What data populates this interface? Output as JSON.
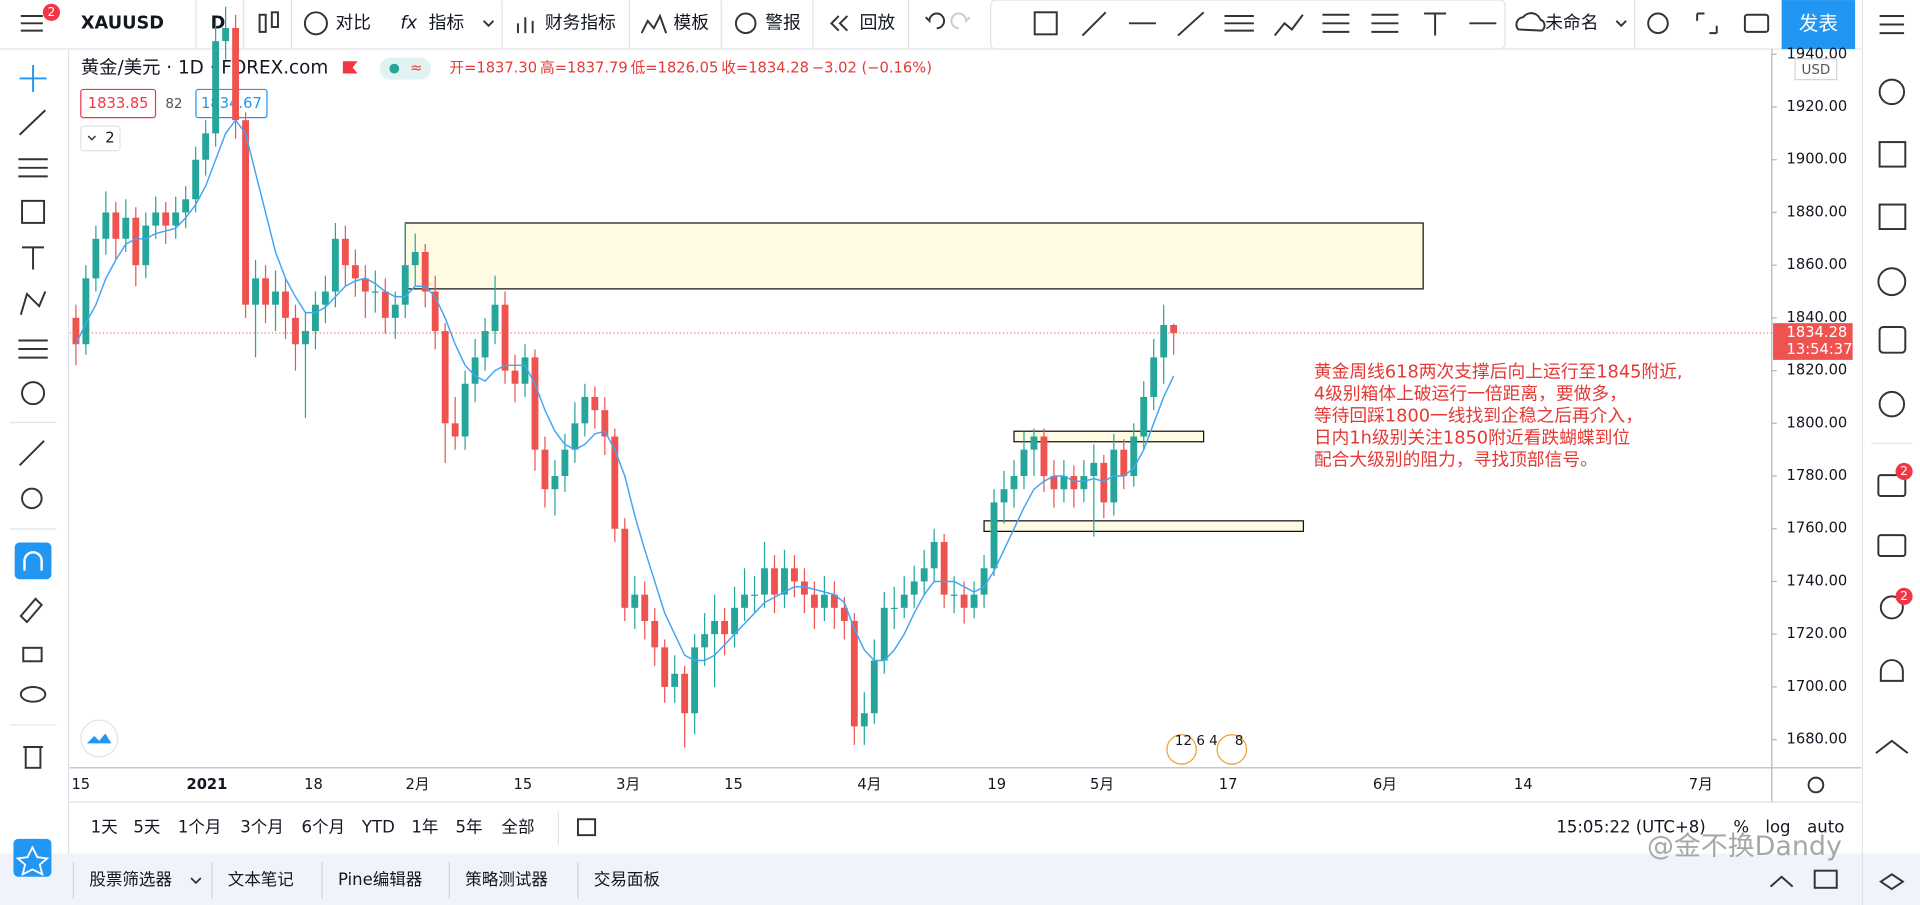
{
  "symbol": "XAUUSD",
  "interval": "D",
  "toolbar": [
    "对比",
    "指标",
    "财务指标",
    "模板",
    "警报",
    "回放"
  ],
  "layout_name": "未命名",
  "publish": "发表",
  "legend": {
    "title": "黄金/美元 · 1D · FOREX.com",
    "ohlc": [
      "开=1837.30",
      "高=1837.79",
      "低=1826.05",
      "收=1834.28",
      "−3.02 (−0.16%)"
    ],
    "bid": "1833.85",
    "spread": "82",
    "ask": "1834.67",
    "indicators": "2"
  },
  "price_axis": {
    "currency": "USD",
    "ylim": [
      1669.3,
      1942
    ],
    "ticks": [
      {
        "value": 1680,
        "label": "1680.00"
      },
      {
        "value": 1700,
        "label": "1700.00"
      },
      {
        "value": 1720,
        "label": "1720.00"
      },
      {
        "value": 1740,
        "label": "1740.00"
      },
      {
        "value": 1760,
        "label": "1760.00"
      },
      {
        "value": 1780,
        "label": "1780.00"
      },
      {
        "value": 1800,
        "label": "1800.00"
      },
      {
        "value": 1820,
        "label": "1820.00"
      },
      {
        "value": 1840,
        "label": "1840.00"
      },
      {
        "value": 1860,
        "label": "1860.00"
      },
      {
        "value": 1880,
        "label": "1880.00"
      },
      {
        "value": 1900,
        "label": "1900.00"
      },
      {
        "value": 1920,
        "label": "1920.00"
      },
      {
        "value": 1940,
        "label": "1940.00"
      }
    ]
  },
  "price_tag": {
    "price": "1834.28",
    "countdown": "13:54:37"
  },
  "time_axis": [
    "15",
    "2021",
    "18",
    "2月",
    "15",
    "3月",
    "15",
    "4月",
    "19",
    "5月",
    "17",
    "6月",
    "14",
    "7月"
  ],
  "candles": [
    [
      1840,
      1845,
      1822,
      1830
    ],
    [
      1830,
      1860,
      1826,
      1855
    ],
    [
      1855,
      1875,
      1850,
      1870
    ],
    [
      1870,
      1888,
      1864,
      1880
    ],
    [
      1880,
      1884,
      1862,
      1870
    ],
    [
      1870,
      1885,
      1865,
      1878
    ],
    [
      1878,
      1882,
      1852,
      1860
    ],
    [
      1860,
      1880,
      1855,
      1875
    ],
    [
      1875,
      1886,
      1870,
      1880
    ],
    [
      1880,
      1884,
      1868,
      1875
    ],
    [
      1875,
      1886,
      1870,
      1880
    ],
    [
      1880,
      1890,
      1874,
      1885
    ],
    [
      1885,
      1905,
      1880,
      1900
    ],
    [
      1900,
      1915,
      1894,
      1910
    ],
    [
      1910,
      1952,
      1905,
      1945
    ],
    [
      1945,
      1958,
      1938,
      1950
    ],
    [
      1950,
      1955,
      1908,
      1915
    ],
    [
      1915,
      1918,
      1840,
      1845
    ],
    [
      1845,
      1862,
      1825,
      1855
    ],
    [
      1855,
      1860,
      1838,
      1845
    ],
    [
      1845,
      1858,
      1835,
      1850
    ],
    [
      1850,
      1855,
      1832,
      1840
    ],
    [
      1840,
      1845,
      1820,
      1830
    ],
    [
      1830,
      1842,
      1802,
      1835
    ],
    [
      1835,
      1850,
      1828,
      1845
    ],
    [
      1845,
      1856,
      1838,
      1850
    ],
    [
      1850,
      1876,
      1844,
      1870
    ],
    [
      1870,
      1875,
      1852,
      1860
    ],
    [
      1860,
      1866,
      1848,
      1855
    ],
    [
      1855,
      1860,
      1840,
      1850
    ],
    [
      1850,
      1858,
      1842,
      1850
    ],
    [
      1850,
      1855,
      1834,
      1840
    ],
    [
      1840,
      1850,
      1832,
      1845
    ],
    [
      1845,
      1876,
      1840,
      1860
    ],
    [
      1860,
      1872,
      1852,
      1865
    ],
    [
      1865,
      1868,
      1844,
      1850
    ],
    [
      1850,
      1856,
      1828,
      1835
    ],
    [
      1835,
      1838,
      1785,
      1800
    ],
    [
      1800,
      1810,
      1790,
      1795
    ],
    [
      1795,
      1820,
      1790,
      1815
    ],
    [
      1815,
      1832,
      1808,
      1825
    ],
    [
      1825,
      1840,
      1820,
      1835
    ],
    [
      1835,
      1856,
      1830,
      1845
    ],
    [
      1845,
      1850,
      1815,
      1820
    ],
    [
      1820,
      1826,
      1808,
      1815
    ],
    [
      1815,
      1830,
      1810,
      1825
    ],
    [
      1825,
      1828,
      1782,
      1790
    ],
    [
      1790,
      1795,
      1768,
      1775
    ],
    [
      1775,
      1786,
      1765,
      1780
    ],
    [
      1780,
      1796,
      1774,
      1790
    ],
    [
      1790,
      1808,
      1785,
      1800
    ],
    [
      1800,
      1815,
      1795,
      1810
    ],
    [
      1810,
      1814,
      1798,
      1805
    ],
    [
      1805,
      1810,
      1788,
      1795
    ],
    [
      1795,
      1798,
      1755,
      1760
    ],
    [
      1760,
      1764,
      1725,
      1730
    ],
    [
      1730,
      1742,
      1722,
      1735
    ],
    [
      1735,
      1740,
      1718,
      1725
    ],
    [
      1725,
      1730,
      1708,
      1715
    ],
    [
      1715,
      1718,
      1694,
      1700
    ],
    [
      1700,
      1712,
      1694,
      1705
    ],
    [
      1705,
      1708,
      1677,
      1690
    ],
    [
      1690,
      1720,
      1682,
      1715
    ],
    [
      1715,
      1728,
      1708,
      1720
    ],
    [
      1720,
      1735,
      1700,
      1725
    ],
    [
      1725,
      1730,
      1712,
      1720
    ],
    [
      1720,
      1738,
      1715,
      1730
    ],
    [
      1730,
      1745,
      1725,
      1735
    ],
    [
      1735,
      1742,
      1728,
      1735
    ],
    [
      1735,
      1755,
      1730,
      1745
    ],
    [
      1745,
      1750,
      1728,
      1735
    ],
    [
      1735,
      1752,
      1730,
      1745
    ],
    [
      1745,
      1750,
      1734,
      1740
    ],
    [
      1740,
      1745,
      1728,
      1735
    ],
    [
      1735,
      1740,
      1722,
      1730
    ],
    [
      1730,
      1742,
      1725,
      1735
    ],
    [
      1735,
      1740,
      1722,
      1730
    ],
    [
      1730,
      1734,
      1718,
      1725
    ],
    [
      1725,
      1728,
      1678,
      1685
    ],
    [
      1685,
      1698,
      1678,
      1690
    ],
    [
      1690,
      1718,
      1686,
      1710
    ],
    [
      1710,
      1736,
      1705,
      1730
    ],
    [
      1730,
      1738,
      1722,
      1730
    ],
    [
      1730,
      1742,
      1726,
      1735
    ],
    [
      1735,
      1746,
      1730,
      1740
    ],
    [
      1740,
      1752,
      1735,
      1745
    ],
    [
      1745,
      1760,
      1740,
      1755
    ],
    [
      1755,
      1758,
      1730,
      1735
    ],
    [
      1735,
      1742,
      1728,
      1735
    ],
    [
      1735,
      1740,
      1724,
      1730
    ],
    [
      1730,
      1740,
      1726,
      1735
    ],
    [
      1735,
      1750,
      1730,
      1745
    ],
    [
      1745,
      1775,
      1742,
      1770
    ],
    [
      1770,
      1782,
      1762,
      1775
    ],
    [
      1775,
      1786,
      1768,
      1780
    ],
    [
      1780,
      1797,
      1775,
      1790
    ],
    [
      1790,
      1798,
      1780,
      1795
    ],
    [
      1795,
      1798,
      1774,
      1780
    ],
    [
      1780,
      1786,
      1768,
      1775
    ],
    [
      1775,
      1786,
      1770,
      1780
    ],
    [
      1780,
      1784,
      1768,
      1775
    ],
    [
      1775,
      1786,
      1770,
      1780
    ],
    [
      1780,
      1792,
      1757,
      1785
    ],
    [
      1785,
      1788,
      1764,
      1770
    ],
    [
      1770,
      1796,
      1765,
      1790
    ],
    [
      1790,
      1794,
      1775,
      1780
    ],
    [
      1780,
      1800,
      1776,
      1795
    ],
    [
      1795,
      1816,
      1790,
      1810
    ],
    [
      1810,
      1832,
      1805,
      1825
    ],
    [
      1825,
      1845,
      1815,
      1837.3
    ],
    [
      1837.3,
      1837.79,
      1826.05,
      1834.28
    ]
  ],
  "ma": [
    1830,
    1838,
    1845,
    1855,
    1862,
    1868,
    1870,
    1870,
    1872,
    1873,
    1874,
    1878,
    1883,
    1890,
    1900,
    1910,
    1915,
    1910,
    1895,
    1880,
    1865,
    1855,
    1848,
    1842,
    1842,
    1844,
    1848,
    1852,
    1854,
    1855,
    1853,
    1850,
    1848,
    1848,
    1852,
    1852,
    1848,
    1840,
    1830,
    1822,
    1818,
    1816,
    1820,
    1822,
    1822,
    1822,
    1815,
    1805,
    1797,
    1792,
    1790,
    1792,
    1796,
    1797,
    1790,
    1780,
    1765,
    1752,
    1740,
    1728,
    1720,
    1712,
    1710,
    1710,
    1712,
    1716,
    1720,
    1724,
    1728,
    1732,
    1734,
    1736,
    1738,
    1738,
    1737,
    1736,
    1735,
    1732,
    1722,
    1714,
    1710,
    1710,
    1714,
    1720,
    1728,
    1735,
    1740,
    1740,
    1740,
    1738,
    1736,
    1738,
    1744,
    1752,
    1760,
    1768,
    1775,
    1778,
    1780,
    1780,
    1778,
    1778,
    1779,
    1778,
    1780,
    1780,
    1783,
    1790,
    1800,
    1810,
    1818
  ],
  "zones": [
    {
      "top": 1876,
      "bottom": 1851,
      "start": 33,
      "end": 135
    },
    {
      "top": 1797,
      "bottom": 1793,
      "start": 94,
      "end": 113
    },
    {
      "top": 1763,
      "bottom": 1759,
      "start": 91,
      "end": 123
    }
  ],
  "annotation": [
    "黄金周线618两次支撑后向上运行至1845附近,",
    "4级别箱体上破运行一倍距离，要做多，",
    "等待回踩1800一线找到企稳之后再介入，",
    "日内1h级别关注1850附近看跌蝴蝶到位",
    "配合大级别的阻力，寻找顶部信号。"
  ],
  "events": [
    "12 6 4",
    "8"
  ],
  "ranges": [
    "1天",
    "5天",
    "1个月",
    "3个月",
    "6个月",
    "YTD",
    "1年",
    "5年",
    "全部"
  ],
  "clock": "15:05:22 (UTC+8)",
  "scale_options": [
    "%",
    "log",
    "auto"
  ],
  "tabs": [
    "股票筛选器",
    "文本笔记",
    "Pine编辑器",
    "策略测试器",
    "交易面板"
  ],
  "badges": [
    "2",
    "2",
    "2"
  ],
  "watermark": "@金不换Dandy"
}
